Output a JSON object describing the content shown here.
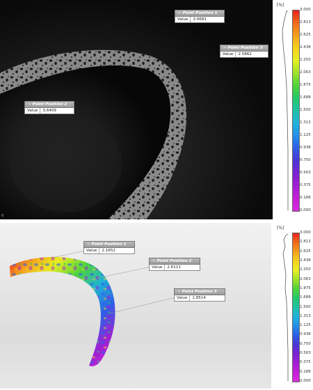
{
  "top_panel": {
    "corner_mark": "0",
    "points": [
      {
        "title": "Point Position 1",
        "label": "Value",
        "value": "3.0681"
      },
      {
        "title": "Point Position 3",
        "label": "Value",
        "value": "2.5862"
      },
      {
        "title": "Point Position 2",
        "label": "Value",
        "value": "3.6409"
      }
    ],
    "scale": {
      "unit": "[%]",
      "ticks": [
        "3.000",
        "2.813",
        "2.625",
        "2.438",
        "2.250",
        "2.063",
        "1.875",
        "1.688",
        "1.500",
        "1.313",
        "1.125",
        "0.938",
        "0.750",
        "0.563",
        "0.375",
        "0.188",
        "0.000"
      ]
    }
  },
  "bottom_panel": {
    "points": [
      {
        "title": "Point Position 1",
        "label": "Value",
        "value": "2.1652"
      },
      {
        "title": "Point Position 2",
        "label": "Value",
        "value": "2.6111"
      },
      {
        "title": "Point Position 3",
        "label": "Value",
        "value": "1.8514"
      }
    ],
    "scale": {
      "unit": "[%]",
      "ticks": [
        "3.000",
        "2.813",
        "2.625",
        "2.438",
        "2.250",
        "2.063",
        "1.875",
        "1.688",
        "1.500",
        "1.313",
        "1.125",
        "0.938",
        "0.750",
        "0.563",
        "0.375",
        "0.188",
        "0.000"
      ]
    }
  },
  "colors": {
    "scale_gradient": [
      "#e8231f",
      "#f06a1a",
      "#f4a11e",
      "#f7d21f",
      "#e6ef22",
      "#9fe22a",
      "#4fd43a",
      "#22c96a",
      "#1ec2a6",
      "#1fb2d9",
      "#248ee8",
      "#2e5fe6",
      "#4b35d8",
      "#7a22d2",
      "#a21fd3",
      "#c41fd6",
      "#d92be0"
    ]
  }
}
